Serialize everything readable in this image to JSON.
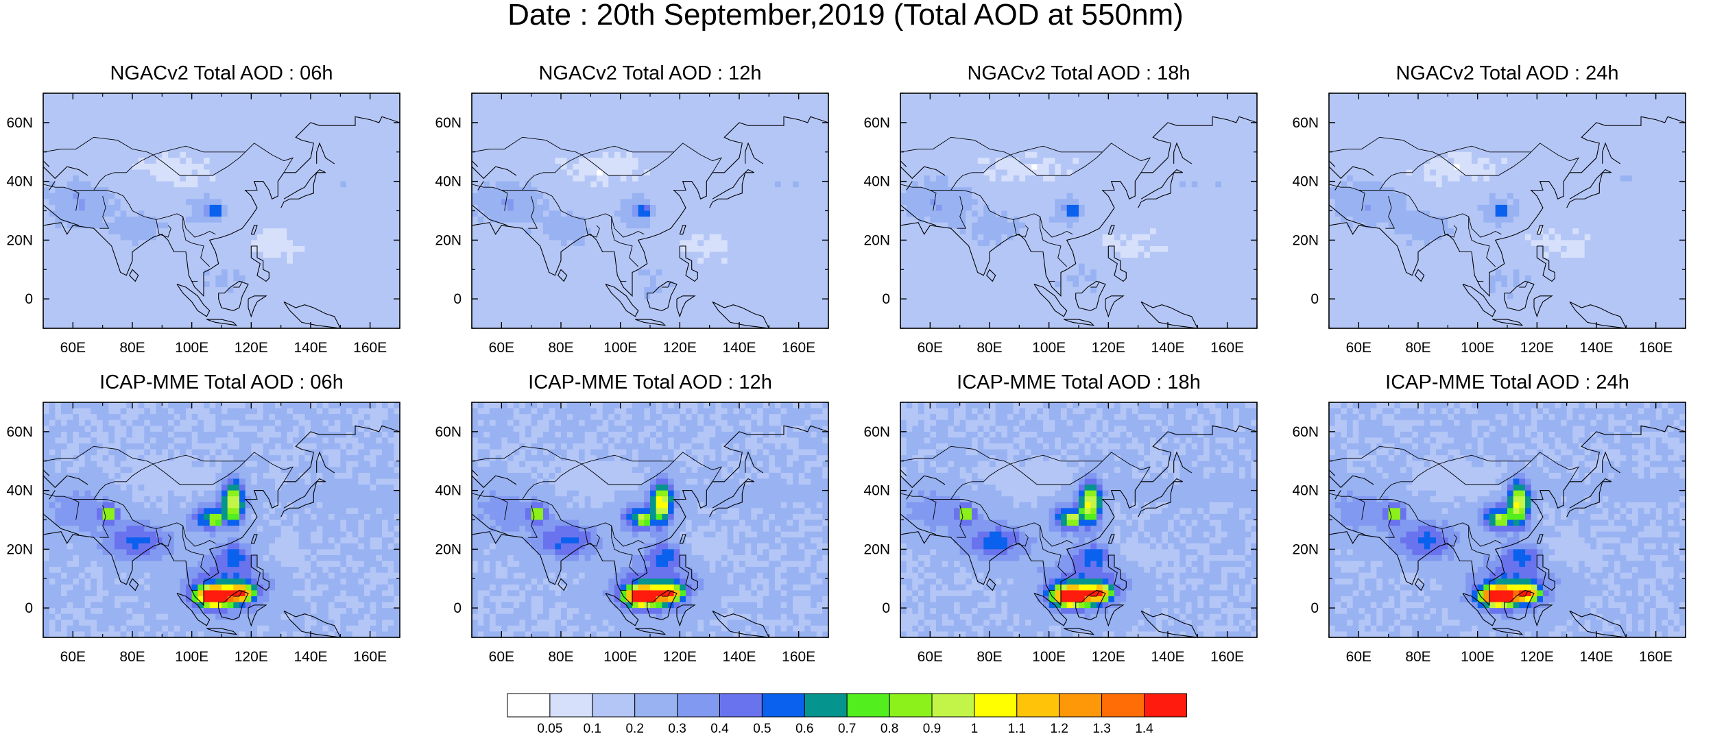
{
  "figure": {
    "title": "Date : 20th September,2019 (Total AOD at 550nm)"
  },
  "chart_data": {
    "type": "heatmap",
    "title": "Date : 20th September,2019 (Total AOD at 550nm)",
    "xlim": [
      50,
      170
    ],
    "ylim": [
      -10,
      70
    ],
    "x_ticks": [
      "60E",
      "80E",
      "100E",
      "120E",
      "140E",
      "160E"
    ],
    "y_ticks": [
      "60N",
      "40N",
      "20N",
      "0"
    ],
    "colorbar": {
      "colors": [
        "#ffffff",
        "#d6e0fb",
        "#b4c6f6",
        "#98b2f2",
        "#8199f0",
        "#6a73ee",
        "#0a61ee",
        "#06948f",
        "#52ee1e",
        "#8cf01a",
        "#c2f548",
        "#ffff00",
        "#ffc40a",
        "#ff9808",
        "#ff6d06",
        "#ff1b0d"
      ],
      "labels": [
        "0.05",
        "0.1",
        "0.2",
        "0.3",
        "0.4",
        "0.5",
        "0.6",
        "0.7",
        "0.8",
        "0.9",
        "1",
        "1.1",
        "1.2",
        "1.3",
        "1.4"
      ]
    },
    "panels": [
      {
        "model": "NGACv2",
        "title": "NGACv2 Total AOD : 06h"
      },
      {
        "model": "NGACv2",
        "title": "NGACv2 Total AOD : 12h"
      },
      {
        "model": "NGACv2",
        "title": "NGACv2 Total AOD : 18h"
      },
      {
        "model": "NGACv2",
        "title": "NGACv2 Total AOD : 24h"
      },
      {
        "model": "ICAP-MME",
        "title": "ICAP-MME Total AOD : 06h"
      },
      {
        "model": "ICAP-MME",
        "title": "ICAP-MME Total AOD : 12h"
      },
      {
        "model": "ICAP-MME",
        "title": "ICAP-MME Total AOD : 18h"
      },
      {
        "model": "ICAP-MME",
        "title": "ICAP-MME Total AOD : 24h"
      }
    ]
  }
}
